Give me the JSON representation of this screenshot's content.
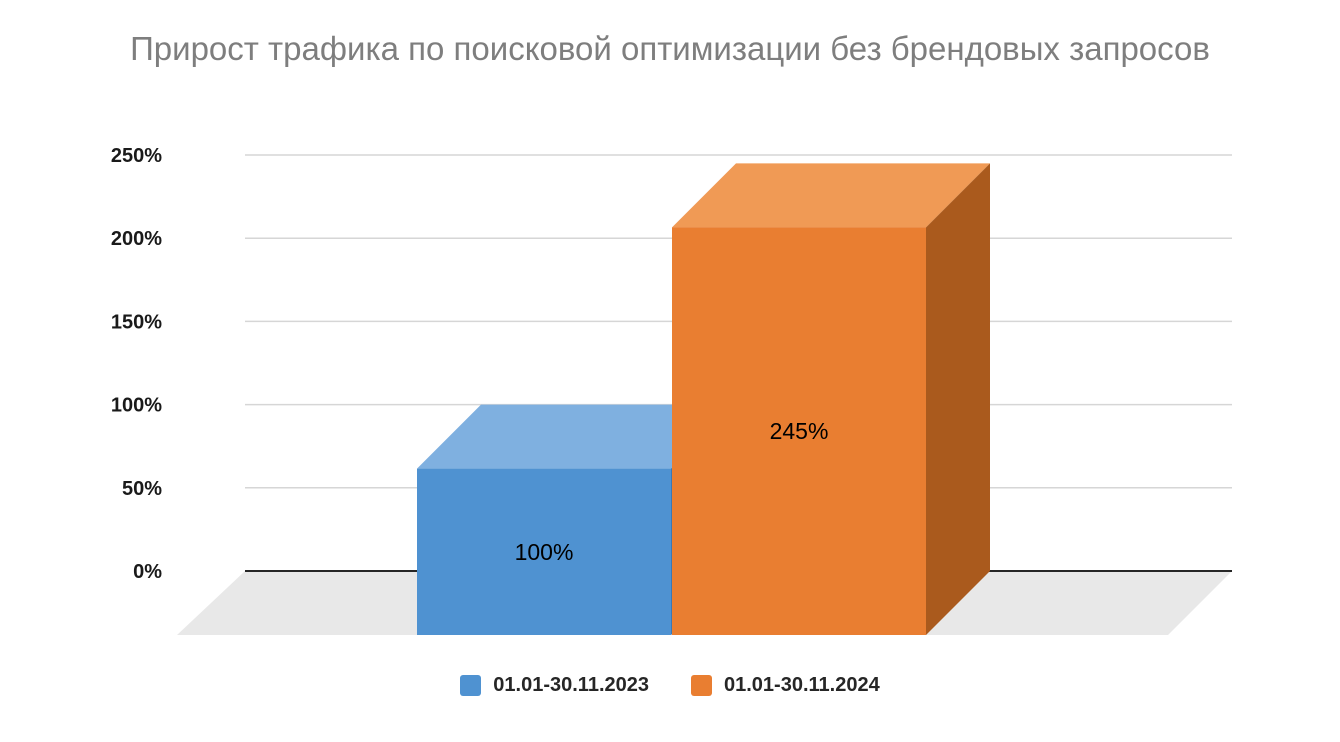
{
  "title": "Прирост трафика по поисковой оптимизации без брендовых запросов",
  "chart_data": {
    "type": "bar",
    "style": "3d-column",
    "title": "Прирост трафика по поисковой оптимизации без брендовых запросов",
    "categories": [
      ""
    ],
    "series": [
      {
        "name": "01.01-30.11.2023",
        "value": 100,
        "label": "100%",
        "color": "#4f92d1",
        "color_top": "#7fb0e0",
        "color_side": "#3a78b5"
      },
      {
        "name": "01.01-30.11.2024",
        "value": 245,
        "label": "245%",
        "color": "#e97e31",
        "color_top": "#f09a55",
        "color_side": "#aa5a1d"
      }
    ],
    "xlabel": "",
    "ylabel": "",
    "ylim": [
      0,
      250
    ],
    "yticks": [
      0,
      50,
      100,
      150,
      200,
      250
    ],
    "ytick_labels": [
      "0%",
      "50%",
      "100%",
      "150%",
      "200%",
      "250%"
    ],
    "grid": true,
    "gridline_color": "#d6d6d6",
    "zero_line_color": "#262626",
    "floor_color": "#e8e8e8",
    "legend_position": "bottom"
  }
}
